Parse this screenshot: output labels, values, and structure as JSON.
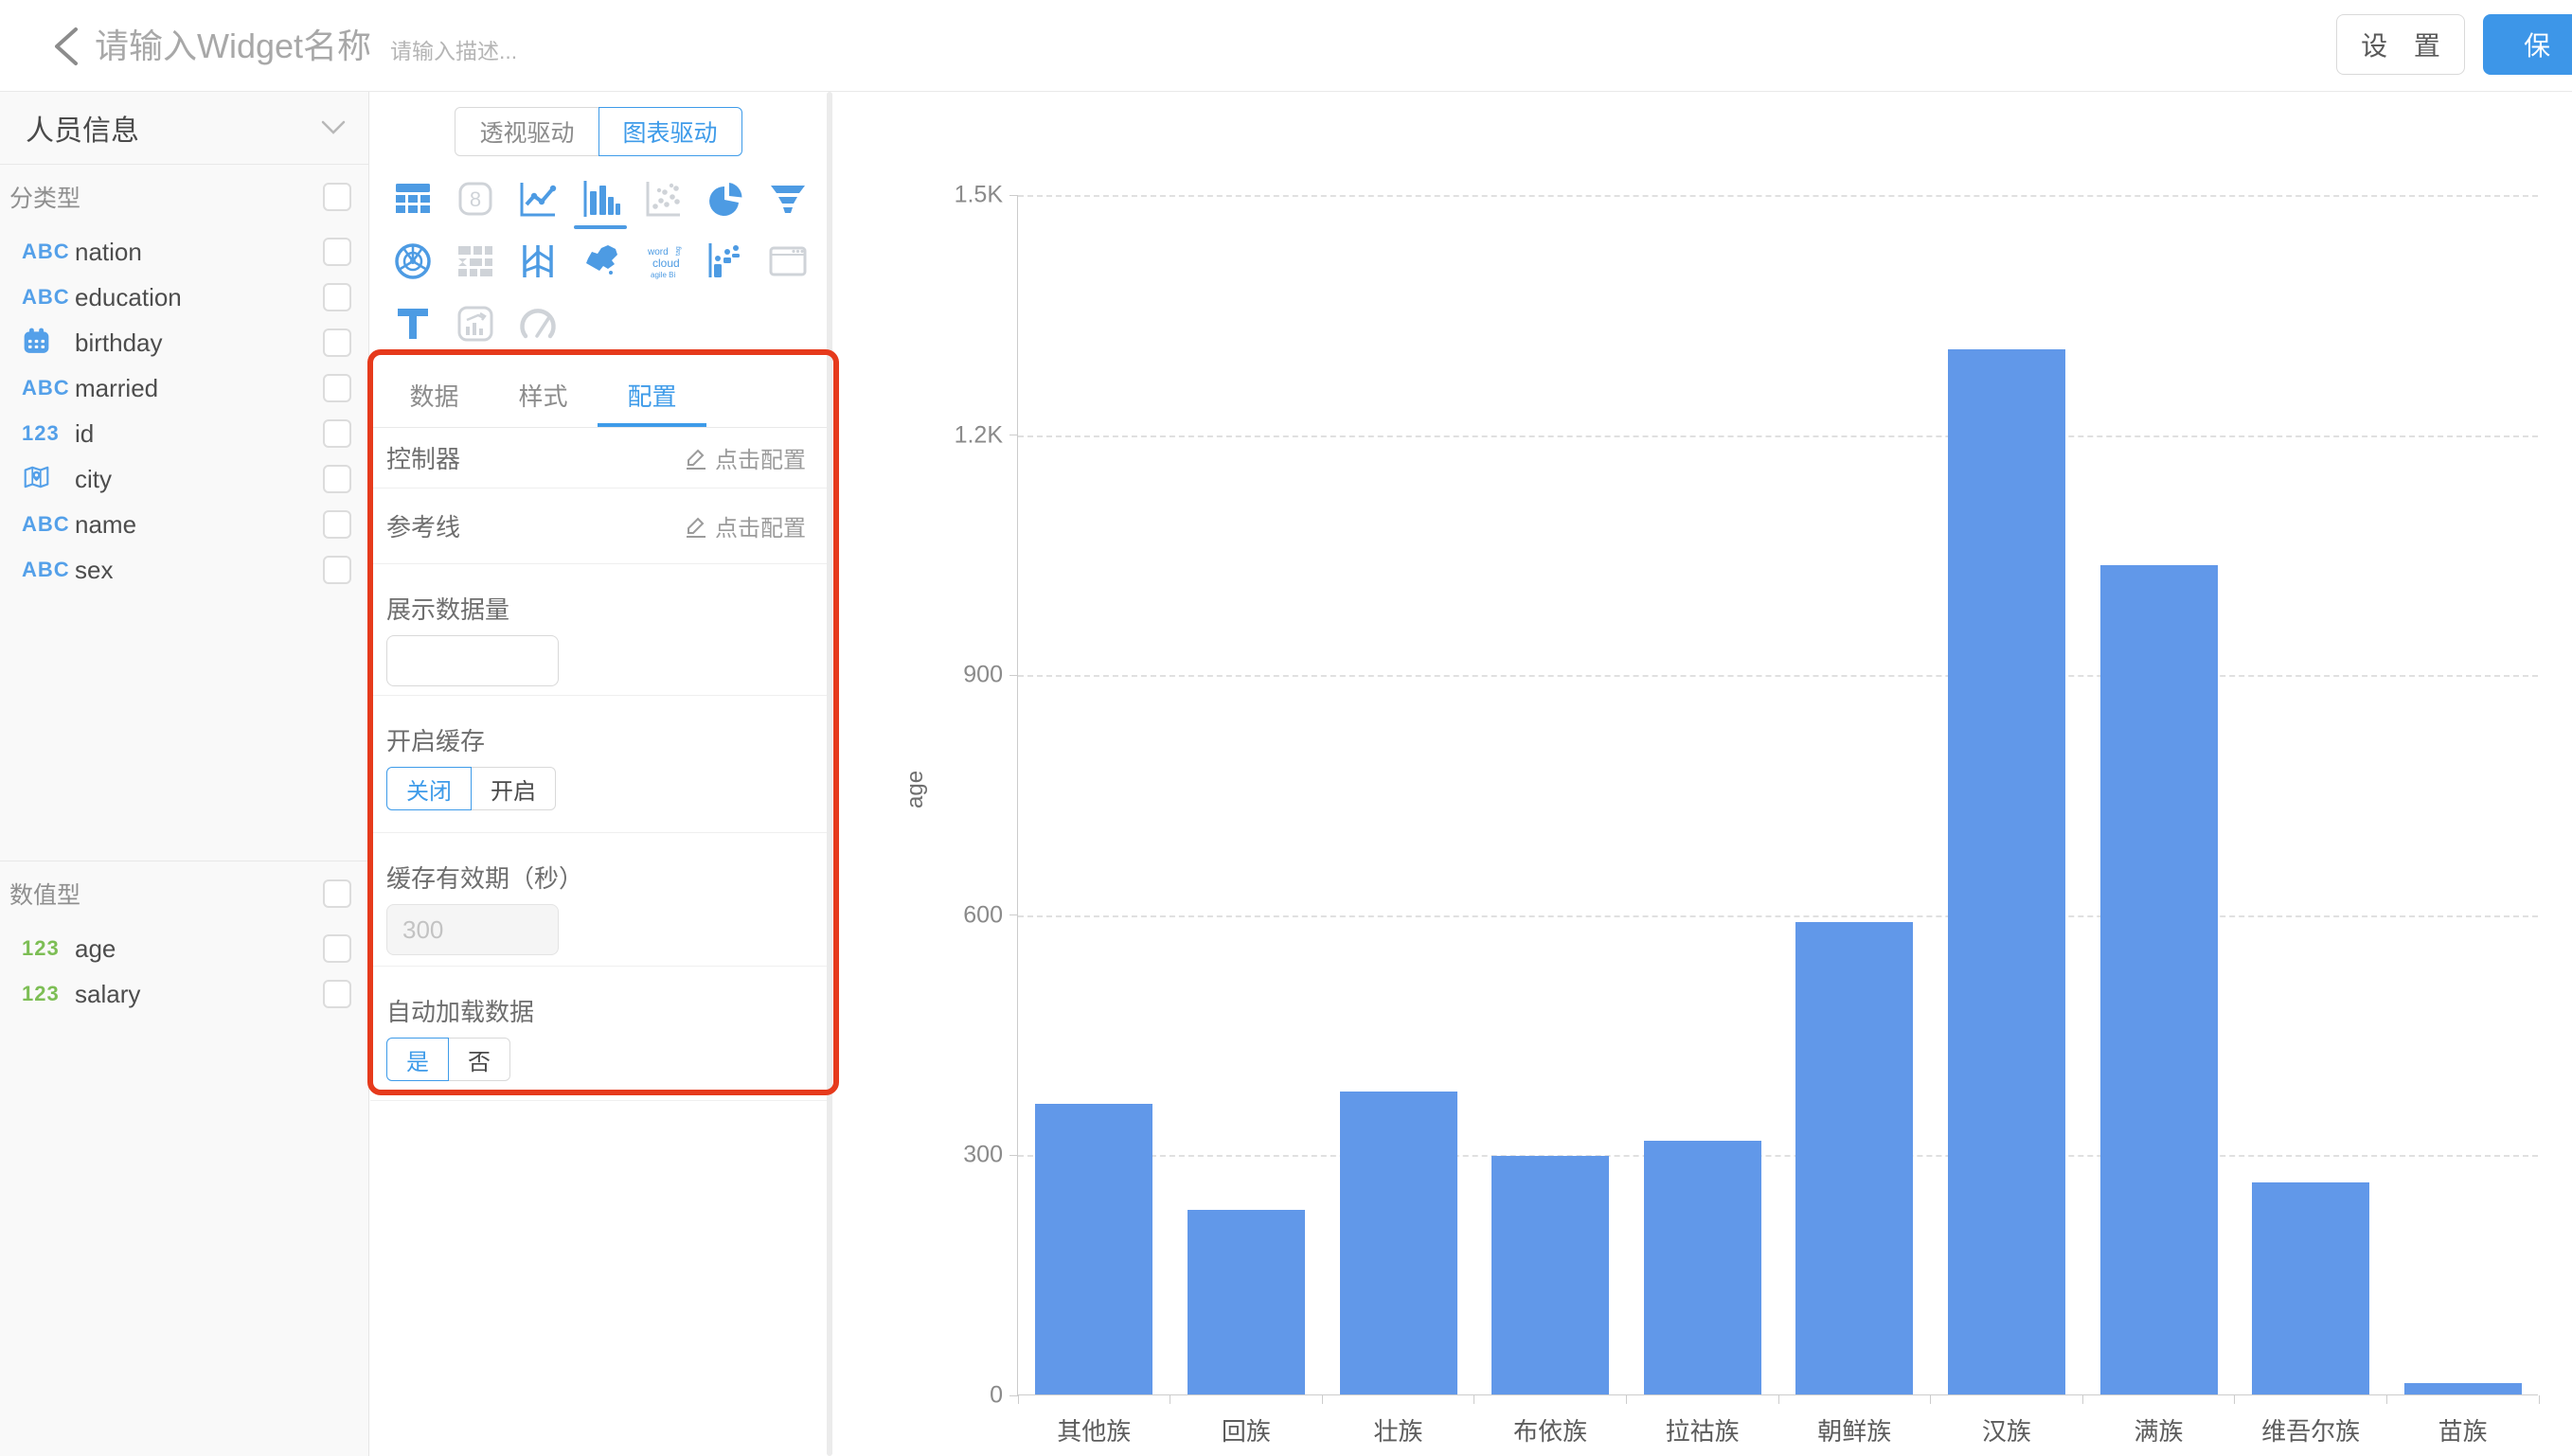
{
  "header": {
    "title_placeholder": "请输入Widget名称",
    "desc_placeholder": "请输入描述...",
    "settings_label": "设 置",
    "save_label": "保 存"
  },
  "sidebar": {
    "dataset_name": "人员信息",
    "sections": [
      {
        "label": "分类型",
        "fields": [
          {
            "name": "nation",
            "icon": "abc"
          },
          {
            "name": "education",
            "icon": "abc"
          },
          {
            "name": "birthday",
            "icon": "calendar"
          },
          {
            "name": "married",
            "icon": "abc"
          },
          {
            "name": "id",
            "icon": "num"
          },
          {
            "name": "city",
            "icon": "location"
          },
          {
            "name": "name",
            "icon": "abc"
          },
          {
            "name": "sex",
            "icon": "abc"
          }
        ]
      },
      {
        "label": "数值型",
        "fields": [
          {
            "name": "age",
            "icon": "num-green"
          },
          {
            "name": "salary",
            "icon": "num-green"
          }
        ]
      }
    ],
    "field_icon_glyphs": {
      "abc": "ABC",
      "num": "123"
    }
  },
  "panel": {
    "mode_toggle": {
      "options": [
        "透视驱动",
        "图表驱动"
      ],
      "selected": "图表驱动"
    },
    "chart_types": [
      {
        "name": "table",
        "active": true
      },
      {
        "name": "scorecard",
        "active": false
      },
      {
        "name": "line-chart",
        "active": true
      },
      {
        "name": "bar-chart",
        "active": true,
        "selected": true
      },
      {
        "name": "scatter",
        "active": false
      },
      {
        "name": "pie-chart",
        "active": true
      },
      {
        "name": "funnel",
        "active": true
      },
      {
        "name": "radar",
        "active": true
      },
      {
        "name": "treemap",
        "active": false
      },
      {
        "name": "parallel",
        "active": true
      },
      {
        "name": "china-map",
        "active": true
      },
      {
        "name": "word-cloud",
        "active": true,
        "words": [
          "word",
          "tag",
          "cloud",
          "agile Bi"
        ]
      },
      {
        "name": "waterfall",
        "active": true
      },
      {
        "name": "iframe",
        "active": false
      },
      {
        "name": "rich-text",
        "active": true
      },
      {
        "name": "combo-chart",
        "active": false
      },
      {
        "name": "gauge",
        "active": false
      }
    ],
    "tabs": {
      "items": [
        "数据",
        "样式",
        "配置"
      ],
      "active": "配置"
    },
    "config": {
      "controller": {
        "label": "控制器",
        "action": "点击配置"
      },
      "reference_line": {
        "label": "参考线",
        "action": "点击配置"
      },
      "display_count": {
        "label": "展示数据量",
        "value": ""
      },
      "cache": {
        "label": "开启缓存",
        "options": [
          "关闭",
          "开启"
        ],
        "selected": "关闭"
      },
      "cache_expire": {
        "label": "缓存有效期（秒）",
        "value": "300"
      },
      "auto_load": {
        "label": "自动加载数据",
        "options": [
          "是",
          "否"
        ],
        "selected": "是"
      }
    }
  },
  "chart_data": {
    "type": "bar",
    "title": "",
    "xlabel": "",
    "ylabel": "age",
    "categories": [
      "其他族",
      "回族",
      "壮族",
      "布依族",
      "拉祜族",
      "朝鲜族",
      "汉族",
      "满族",
      "维吾尔族",
      "苗族"
    ],
    "values": [
      363,
      231,
      378,
      298,
      317,
      590,
      1306,
      1036,
      265,
      14
    ],
    "ylim": [
      0,
      1500
    ],
    "yticks": [
      {
        "value": 0,
        "label": "0"
      },
      {
        "value": 300,
        "label": "300"
      },
      {
        "value": 600,
        "label": "600"
      },
      {
        "value": 900,
        "label": "900"
      },
      {
        "value": 1200,
        "label": "1.2K"
      },
      {
        "value": 1500,
        "label": "1.5K"
      }
    ],
    "grid": "dashed-horizontal",
    "legend": "none",
    "bar_color": "#6198E9"
  },
  "colors": {
    "accent": "#3E9BE9",
    "bar": "#6198E9",
    "annotation": "#E63A1C",
    "string_field": "#54A0E9",
    "number_field": "#7DBE55"
  }
}
